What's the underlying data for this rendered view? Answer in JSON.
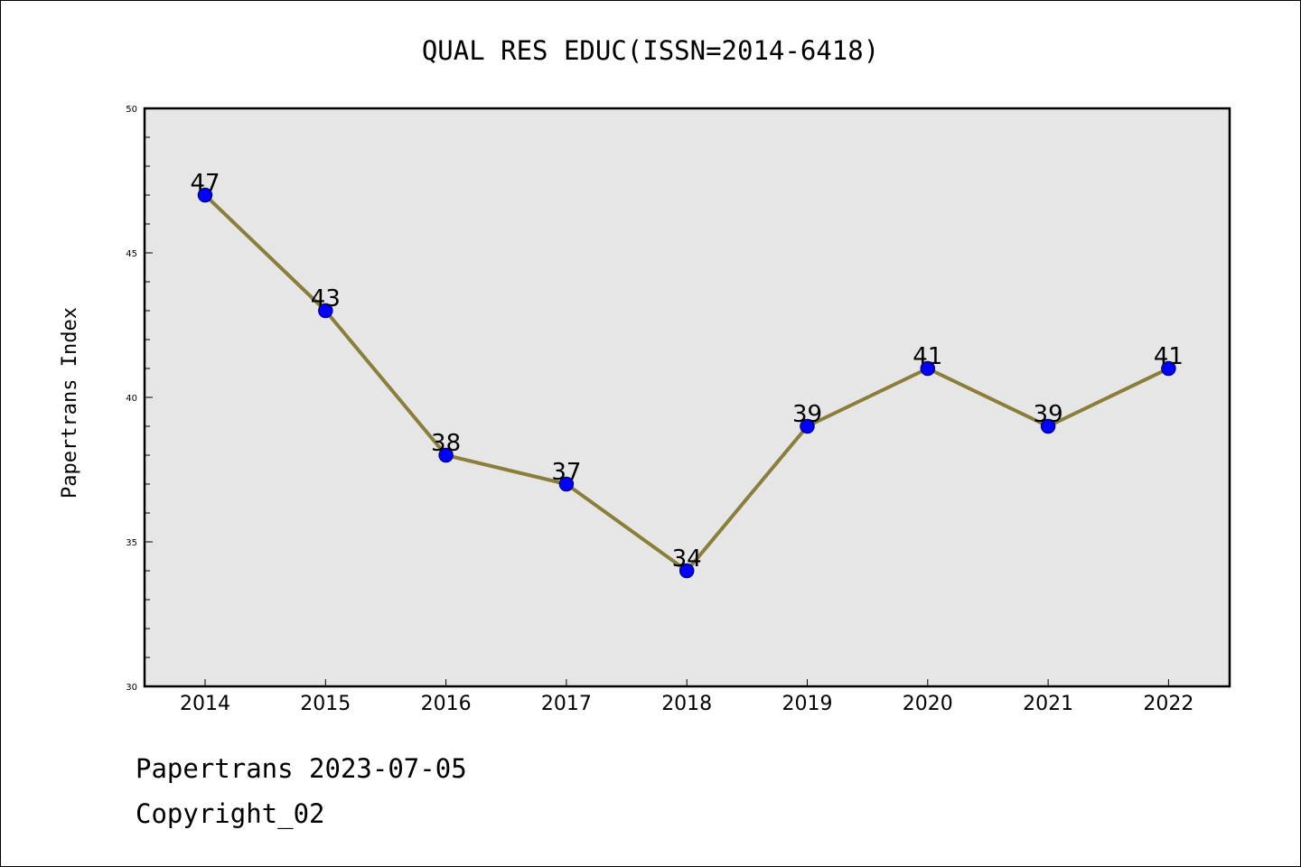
{
  "chart_data": {
    "type": "line",
    "title": "QUAL RES EDUC(ISSN=2014-6418)",
    "xlabel": "",
    "ylabel": "Papertrans Index",
    "categories": [
      "2014",
      "2015",
      "2016",
      "2017",
      "2018",
      "2019",
      "2020",
      "2021",
      "2022"
    ],
    "series": [
      {
        "values": [
          47,
          43,
          38,
          37,
          34,
          39,
          41,
          39,
          41
        ]
      }
    ],
    "ylim": [
      30,
      50
    ],
    "yticks": [
      "30",
      "35",
      "40",
      "45",
      "50"
    ],
    "y_minor_step": 1,
    "grid": false,
    "legend": "none",
    "colors": {
      "line": "#8b7d3a",
      "marker": "#0000ff",
      "marker_edge": "#00008b",
      "plot_background": "#e6e6e6"
    }
  },
  "footer": {
    "line1": "Papertrans 2023-07-05",
    "line2": "Copyright_02"
  }
}
